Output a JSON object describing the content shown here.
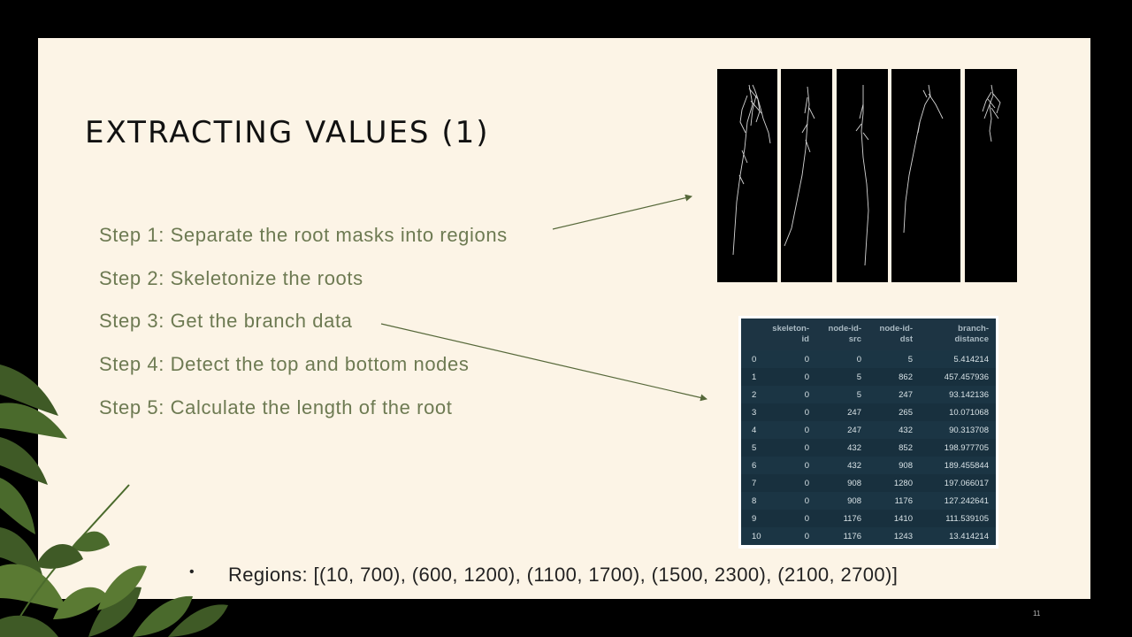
{
  "slide": {
    "title": "EXTRACTING VALUES (1)",
    "steps": [
      "Step 1: Separate the root masks into regions",
      "Step 2: Skeletonize the roots",
      "Step 3: Get the branch data",
      "Step 4: Detect the top and bottom nodes",
      "Step 5: Calculate the length of the root"
    ],
    "bullet": "•",
    "regions_text": "Regions: [(10, 700), (600, 1200), (1100, 1700), (1500, 2300), (2100, 2700)]",
    "slide_number": "11"
  },
  "branch_table": {
    "headers": [
      "",
      "skeleton-id",
      "node-id-src",
      "node-id-dst",
      "branch-distance"
    ],
    "header_lines": [
      [
        "",
        ""
      ],
      [
        "skeleton-",
        "id"
      ],
      [
        "node-id-",
        "src"
      ],
      [
        "node-id-",
        "dst"
      ],
      [
        "branch-",
        "distance"
      ]
    ],
    "rows": [
      [
        "0",
        "0",
        "0",
        "5",
        "5.414214"
      ],
      [
        "1",
        "0",
        "5",
        "862",
        "457.457936"
      ],
      [
        "2",
        "0",
        "5",
        "247",
        "93.142136"
      ],
      [
        "3",
        "0",
        "247",
        "265",
        "10.071068"
      ],
      [
        "4",
        "0",
        "247",
        "432",
        "90.313708"
      ],
      [
        "5",
        "0",
        "432",
        "852",
        "198.977705"
      ],
      [
        "6",
        "0",
        "432",
        "908",
        "189.455844"
      ],
      [
        "7",
        "0",
        "908",
        "1280",
        "197.066017"
      ],
      [
        "8",
        "0",
        "908",
        "1176",
        "127.242641"
      ],
      [
        "9",
        "0",
        "1176",
        "1410",
        "111.539105"
      ],
      [
        "10",
        "0",
        "1176",
        "1243",
        "13.414214"
      ]
    ]
  },
  "colors": {
    "slide_background": "#fcf4e6",
    "frame": "#000000",
    "step_text": "#6d7a52",
    "arrow": "#56683a",
    "table_header": "#1d3443",
    "table_row": "#1b3544",
    "leaf_dark": "#3f5a26",
    "leaf_light": "#5a7a33"
  }
}
